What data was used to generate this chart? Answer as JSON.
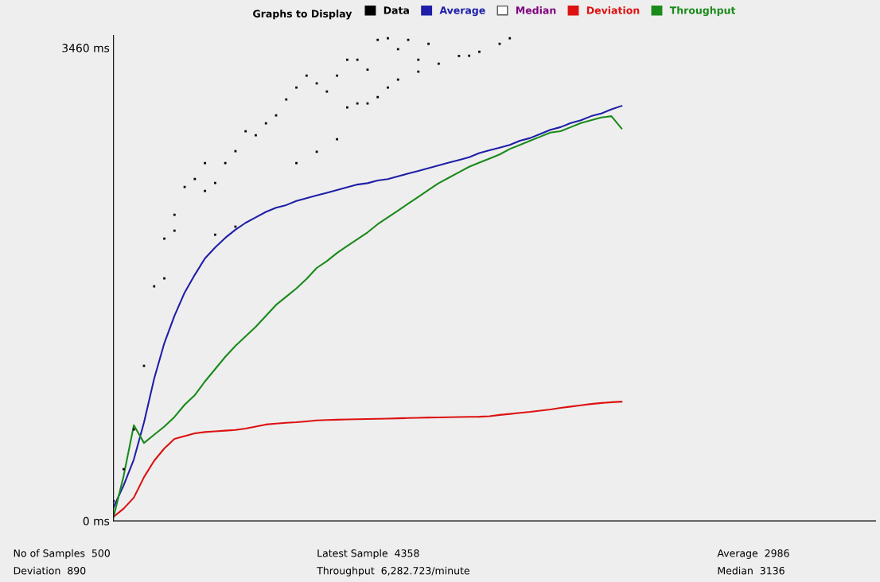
{
  "chart_data": {
    "type": "line",
    "ylim": [
      0,
      3550
    ],
    "yticks": [
      {
        "value": 0,
        "label": "0 ms"
      },
      {
        "value": 3460,
        "label": "3460 ms"
      }
    ],
    "categories": [
      null,
      null,
      null,
      null,
      null,
      null,
      null,
      null,
      null,
      null,
      null,
      null,
      null,
      null,
      null,
      null,
      null,
      null,
      null,
      null,
      null,
      null,
      null,
      null,
      null,
      null,
      null,
      null,
      null,
      null,
      null,
      null,
      null,
      null,
      null,
      null,
      null,
      null,
      null,
      null,
      null,
      null,
      null,
      null,
      null,
      null,
      null,
      null,
      null,
      null,
      null,
      null,
      null,
      null,
      null,
      null,
      null,
      null,
      null,
      null,
      null,
      null,
      null,
      null,
      null,
      null,
      null,
      null,
      null,
      null,
      null,
      null,
      null,
      null,
      null,
      null
    ],
    "tick_labels": "y",
    "grid": false,
    "legend": "top",
    "series": [
      {
        "name": "Data",
        "type": "scatter",
        "marker": "square",
        "color": "#000000",
        "values": [
          145,
          378,
          669,
          1134,
          1715,
          2064,
          2239,
          2442,
          2500,
          2617,
          2471,
          2617,
          2704,
          2849,
          2820,
          2908,
          2966,
          3082,
          3169,
          3256,
          3200,
          3140,
          3256,
          3373,
          3373,
          3300,
          3518,
          3530,
          3450,
          3518,
          3373,
          3489,
          null,
          null,
          null,
          null,
          null,
          null,
          null,
          null,
          null,
          null,
          null,
          null,
          null,
          null,
          null,
          null,
          null,
          null,
          null,
          null,
          null,
          null,
          null,
          null,
          null,
          null,
          null,
          null,
          null,
          null,
          null,
          null,
          null,
          null,
          null,
          null,
          null,
          null,
          null,
          null,
          null,
          null,
          null,
          null
        ]
      },
      {
        "type": "scatter",
        "marker": "square",
        "color": "#000000",
        "values": [
          null,
          null,
          null,
          null,
          null,
          1774,
          2122,
          null,
          null,
          2413,
          2093,
          null,
          2152,
          null,
          null,
          null,
          null,
          null,
          2617,
          null,
          2700,
          null,
          2791,
          3024,
          3053,
          3053,
          3100,
          3169,
          3227,
          null,
          3285,
          null,
          3344,
          null,
          3400,
          3402,
          3431,
          null,
          3489,
          3530,
          null,
          null,
          null,
          null,
          null,
          null,
          null,
          null,
          null,
          null,
          null,
          null,
          null,
          null,
          null,
          null,
          null,
          null,
          null,
          null,
          null,
          null,
          null,
          null,
          null,
          null,
          null,
          null,
          null,
          null,
          null,
          null,
          null,
          null,
          null,
          null
        ]
      },
      {
        "name": "Average",
        "color": "#1f1fa8",
        "values": [
          99,
          260,
          450,
          720,
          1040,
          1300,
          1500,
          1670,
          1800,
          1920,
          2000,
          2070,
          2130,
          2180,
          2220,
          2260,
          2290,
          2310,
          2340,
          2360,
          2380,
          2400,
          2420,
          2440,
          2460,
          2470,
          2490,
          2500,
          2520,
          2540,
          2560,
          2580,
          2600,
          2620,
          2640,
          2660,
          2690,
          2710,
          2730,
          2750,
          2780,
          2800,
          2830,
          2860,
          2880,
          2910,
          2930,
          2960,
          2980,
          3010,
          3035,
          null,
          null,
          null,
          null,
          null,
          null,
          null,
          null,
          null,
          null,
          null,
          null,
          null,
          null,
          null,
          null,
          null,
          null,
          null,
          null,
          null,
          null,
          null,
          null,
          null
        ]
      },
      {
        "name": "Deviation",
        "color": "#dd1111",
        "values": [
          30,
          90,
          170,
          320,
          440,
          530,
          600,
          620,
          640,
          650,
          655,
          660,
          665,
          675,
          690,
          705,
          712,
          718,
          722,
          728,
          735,
          738,
          740,
          742,
          744,
          745,
          747,
          748,
          750,
          752,
          754,
          756,
          757,
          758,
          760,
          761,
          762,
          765,
          775,
          782,
          790,
          797,
          806,
          815,
          826,
          836,
          845,
          855,
          862,
          868,
          872,
          null,
          null,
          null,
          null,
          null,
          null,
          null,
          null,
          null,
          null,
          null,
          null,
          null,
          null,
          null,
          null,
          null,
          null,
          null,
          null,
          null,
          null,
          null,
          null,
          null
        ]
      },
      {
        "name": "Throughput",
        "color": "#1a8a1a",
        "values": [
          29,
          330,
          700,
          570,
          630,
          690,
          760,
          850,
          920,
          1020,
          1110,
          1200,
          1280,
          1350,
          1420,
          1500,
          1580,
          1640,
          1700,
          1770,
          1850,
          1900,
          1960,
          2010,
          2060,
          2110,
          2170,
          2220,
          2270,
          2320,
          2370,
          2420,
          2470,
          2510,
          2550,
          2590,
          2620,
          2650,
          2680,
          2720,
          2750,
          2780,
          2810,
          2840,
          2850,
          2880,
          2910,
          2930,
          2950,
          2960,
          2870,
          null,
          null,
          null,
          null,
          null,
          null,
          null,
          null,
          null,
          null,
          null,
          null,
          null,
          null,
          null,
          null,
          null,
          null,
          null,
          null,
          null,
          null,
          null,
          null,
          null
        ]
      }
    ],
    "annotations": [
      "Graphs to Display",
      "Median",
      "No of Samples  500",
      "Latest Sample  4358",
      "Average  2986",
      "Deviation  890",
      "Throughput  6,282.723/minute",
      "Median  3136"
    ]
  }
}
